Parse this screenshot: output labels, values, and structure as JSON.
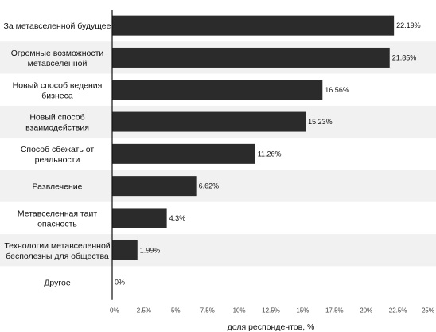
{
  "chart_data": {
    "type": "bar",
    "orientation": "horizontal",
    "categories": [
      [
        "За метавселенной будущее"
      ],
      [
        "Огромные возможности",
        "метавселенной"
      ],
      [
        "Новый способ ведения",
        "бизнеса"
      ],
      [
        "Новый способ",
        "взаимодействия"
      ],
      [
        "Способ сбежать от",
        "реальности"
      ],
      [
        "Развлечение"
      ],
      [
        "Метавселенная таит",
        "опасность"
      ],
      [
        "Технологии метавселенной",
        "бесполезны для общества"
      ],
      [
        "Другое"
      ]
    ],
    "values": [
      22.19,
      21.85,
      16.56,
      15.23,
      11.26,
      6.62,
      4.3,
      1.99,
      0
    ],
    "value_labels": [
      "22.19%",
      "21.85%",
      "16.56%",
      "15.23%",
      "11.26%",
      "6.62%",
      "4.3%",
      "1.99%",
      "0%"
    ],
    "xlim": [
      0,
      25
    ],
    "x_ticks": [
      0,
      2.5,
      5,
      7.5,
      10,
      12.5,
      15,
      17.5,
      20,
      22.5,
      25
    ],
    "x_tick_labels": [
      "0%",
      "2.5%",
      "5%",
      "7.5%",
      "10%",
      "12.5%",
      "15%",
      "17.5%",
      "20%",
      "22.5%",
      "25%"
    ],
    "xlabel": "доля респондентов, %",
    "title": "",
    "ylabel": "",
    "grid": false,
    "legend": "none",
    "colors": {
      "bar": "#2b2b2b",
      "band_alt": "#f1f1f1",
      "band": "#ffffff",
      "axis": "#111111",
      "text": "#111111"
    }
  }
}
